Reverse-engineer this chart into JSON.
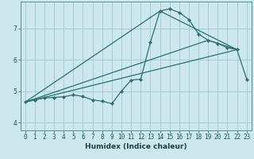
{
  "xlabel": "Humidex (Indice chaleur)",
  "bg_color": "#cce8ee",
  "grid_color": "#a8cdd4",
  "line_color": "#2a7070",
  "xlim": [
    -0.5,
    23.5
  ],
  "ylim": [
    3.75,
    7.85
  ],
  "yticks": [
    4,
    5,
    6,
    7
  ],
  "xticks": [
    0,
    1,
    2,
    3,
    4,
    5,
    6,
    7,
    8,
    9,
    10,
    11,
    12,
    13,
    14,
    15,
    16,
    17,
    18,
    19,
    20,
    21,
    22,
    23
  ],
  "series1_x": [
    0,
    1,
    2,
    3,
    4,
    5,
    6,
    7,
    8,
    9,
    10,
    11,
    12,
    13,
    14,
    15,
    16,
    17,
    18,
    19,
    20,
    21,
    22,
    23
  ],
  "series1_y": [
    4.65,
    4.72,
    4.78,
    4.8,
    4.82,
    4.88,
    4.83,
    4.72,
    4.68,
    4.6,
    5.0,
    5.35,
    5.38,
    6.55,
    7.55,
    7.62,
    7.5,
    7.28,
    6.82,
    6.62,
    6.52,
    6.38,
    6.32,
    5.38
  ],
  "series2_x": [
    0,
    14,
    22
  ],
  "series2_y": [
    4.65,
    7.55,
    6.32
  ],
  "series3_x": [
    0,
    19,
    22
  ],
  "series3_y": [
    4.65,
    6.62,
    6.32
  ],
  "series4_x": [
    0,
    22
  ],
  "series4_y": [
    4.65,
    6.32
  ]
}
